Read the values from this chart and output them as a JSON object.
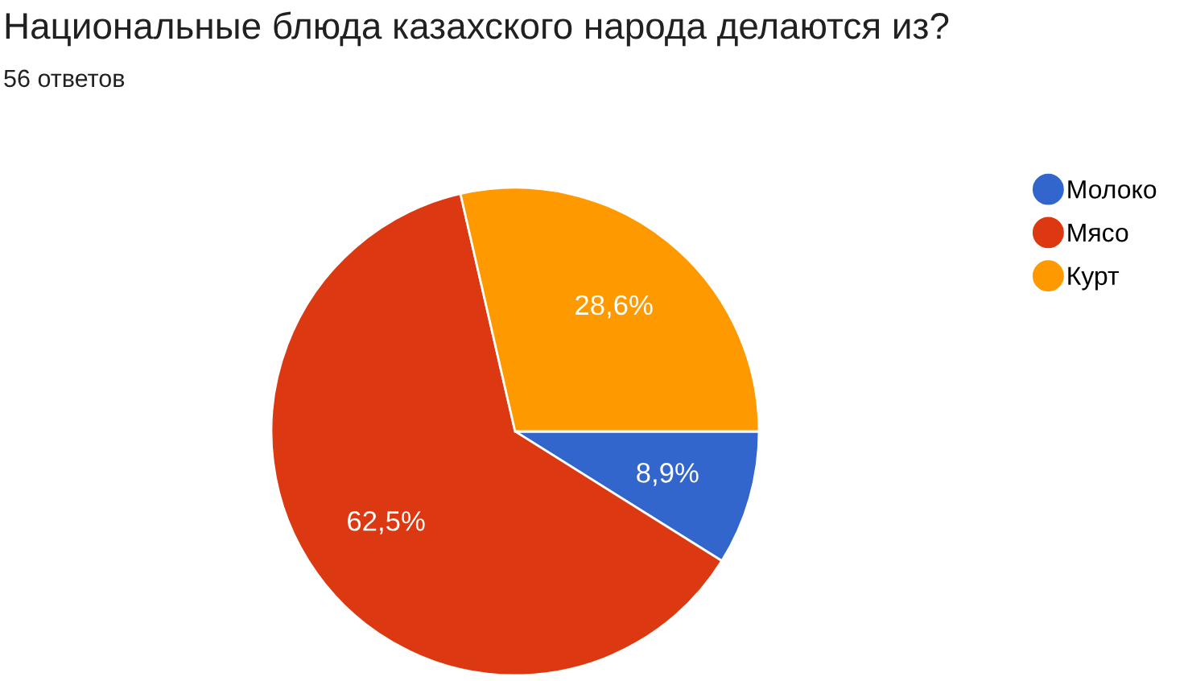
{
  "chart_data": {
    "type": "pie",
    "title": "Национальные блюда казахского народа делаются из?",
    "subtitle": "56 ответов",
    "categories": [
      "Молоко",
      "Мясо",
      "Курт"
    ],
    "values": [
      8.9,
      62.5,
      28.6
    ],
    "value_labels": [
      "8,9%",
      "62,5%",
      "28,6%"
    ],
    "colors": [
      "#3366cc",
      "#dc3912",
      "#ff9900"
    ],
    "legend": "right"
  }
}
